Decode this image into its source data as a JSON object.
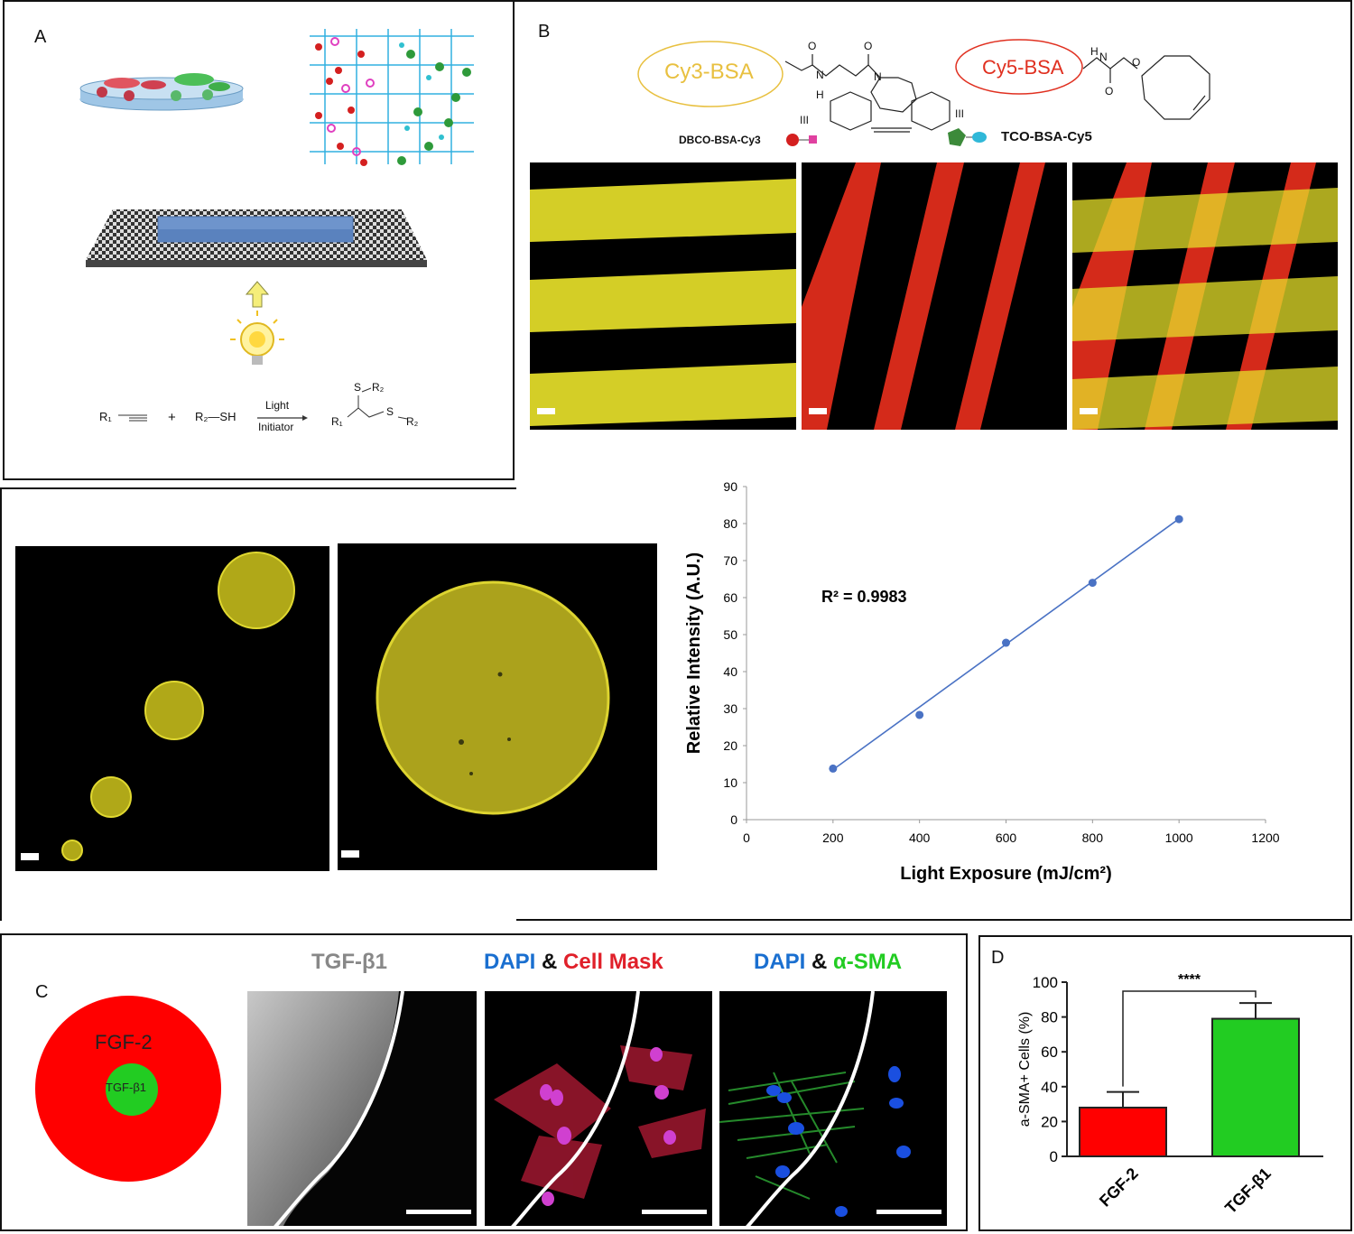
{
  "panel_labels": {
    "a": "A",
    "b": "B",
    "c": "C",
    "d": "D"
  },
  "panel_a": {
    "reaction": {
      "reactant1": "R₁",
      "plus": "+",
      "reactant2": "R₂—SH",
      "arrow_top": "Light",
      "arrow_bottom": "Initiator",
      "product_s_top": "S",
      "product_r2_top": "R₂",
      "product_r1": "R₁",
      "product_s_right": "S",
      "product_r2_right": "R₂"
    }
  },
  "panel_b": {
    "cy3_label": "Cy3-BSA",
    "cy5_label": "Cy5-BSA",
    "dbco_label": "DBCO-BSA-Cy3",
    "tco_label": "TCO-BSA-Cy5",
    "conj_mark": "III",
    "struct_atoms": {
      "o": "O",
      "n": "N",
      "h": "H"
    },
    "colors": {
      "cy3": "#e8c040",
      "cy5": "#e03020",
      "stripe_yellow": "#e6e02a",
      "stripe_red": "#d42a1a"
    }
  },
  "chart_data": {
    "type": "scatter",
    "xlabel": "Light Exposure (mJ/cm²)",
    "ylabel": "Relative Intensity  (A.U.)",
    "annotation": "R² = 0.9983",
    "xlim": [
      0,
      1200
    ],
    "ylim": [
      0,
      90
    ],
    "xticks": [
      "0",
      "200",
      "400",
      "600",
      "800",
      "1000",
      "1200"
    ],
    "yticks": [
      "0",
      "10",
      "20",
      "30",
      "40",
      "50",
      "60",
      "70",
      "80",
      "90"
    ],
    "points": [
      {
        "x": 200,
        "y": 13.8
      },
      {
        "x": 400,
        "y": 28.3
      },
      {
        "x": 600,
        "y": 47.8
      },
      {
        "x": 800,
        "y": 64
      },
      {
        "x": 1000,
        "y": 81.2
      }
    ],
    "fit": {
      "x": [
        200,
        1000
      ],
      "y": [
        13.5,
        81.3
      ]
    },
    "color": "#4a72c4",
    "grid": false
  },
  "panel_c": {
    "outer_label": "FGF-2",
    "inner_label": "TGF-β1",
    "col1_title": "TGF-β1",
    "col2_title_a": "DAPI",
    "col2_amp": "&",
    "col2_title_b": "Cell Mask",
    "col3_title_a": "DAPI",
    "col3_amp": "&",
    "col3_title_b": "α-SMA",
    "colors": {
      "outer": "#ff0000",
      "inner": "#22cc22",
      "gray_title": "#888888",
      "dapi": "#1a6fd0",
      "cellmask": "#e0202a",
      "asma": "#22cc22"
    }
  },
  "chart_d": {
    "type": "bar",
    "ylabel": "a-SMA+ Cells (%)",
    "categories": [
      "FGF-2",
      "TGF-β1"
    ],
    "values": [
      28,
      79
    ],
    "errors": [
      9,
      9
    ],
    "ylim": [
      0,
      100
    ],
    "yticks": [
      "0",
      "20",
      "40",
      "60",
      "80",
      "100"
    ],
    "significance": "****",
    "colors": [
      "#ff0000",
      "#22cc22"
    ]
  }
}
